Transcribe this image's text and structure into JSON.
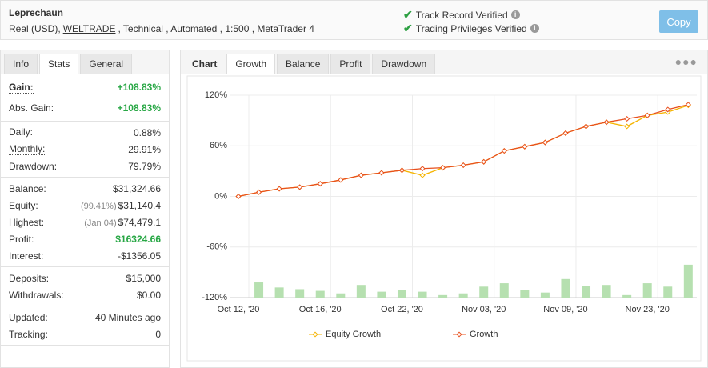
{
  "header": {
    "title": "Leprechaun",
    "account": "Real (USD),",
    "broker": "WELTRADE",
    "details": ", Technical , Automated , 1:500 , MetaTrader 4",
    "verified": [
      "Track Record Verified",
      "Trading Privileges Verified"
    ],
    "button": "Copy"
  },
  "left_tabs": {
    "items": [
      "Info",
      "Stats",
      "General"
    ],
    "active": 1
  },
  "stats": [
    [
      {
        "label": "Gain:",
        "value": "+108.83%",
        "green": true,
        "hint": true,
        "bold": true
      },
      {
        "label": "Abs. Gain:",
        "value": "+108.83%",
        "green": true,
        "hint": true
      }
    ],
    [
      {
        "label": "Daily:",
        "value": "0.88%",
        "hint": true
      },
      {
        "label": "Monthly:",
        "value": "29.91%",
        "hint": true
      },
      {
        "label": "Drawdown:",
        "value": "79.79%"
      }
    ],
    [
      {
        "label": "Balance:",
        "value": "$31,324.66"
      },
      {
        "label": "Equity:",
        "note": "(99.41%)",
        "value": "$31,140.4"
      },
      {
        "label": "Highest:",
        "note": "(Jan 04)",
        "value": "$74,479.1"
      },
      {
        "label": "Profit:",
        "value": "$16324.66",
        "green": true
      },
      {
        "label": "Interest:",
        "value": "-$1356.05"
      }
    ],
    [
      {
        "label": "Deposits:",
        "value": "$15,000"
      },
      {
        "label": "Withdrawals:",
        "value": "$0.00"
      }
    ],
    [
      {
        "label": "Updated:",
        "value": "40 Minutes ago"
      },
      {
        "label": "Tracking:",
        "value": "0"
      }
    ]
  ],
  "right_tabs": {
    "items": [
      "Chart",
      "Growth",
      "Balance",
      "Profit",
      "Drawdown"
    ],
    "active": 1
  },
  "chart_data": {
    "type": "line",
    "categories": [
      "Oct 12, '20",
      null,
      null,
      null,
      "Oct 16, '20",
      null,
      null,
      null,
      "Oct 22, '20",
      null,
      null,
      null,
      "Nov 03, '20",
      null,
      null,
      null,
      "Nov 09, '20",
      null,
      null,
      null,
      "Nov 23, '20",
      null,
      null
    ],
    "ylim": [
      -120,
      120
    ],
    "yticks": [
      {
        "value": 120,
        "label": "120%"
      },
      {
        "value": 60,
        "label": "60%"
      },
      {
        "value": 0,
        "label": "0%"
      },
      {
        "value": -60,
        "label": "-60%"
      },
      {
        "value": -120,
        "label": "-120%"
      }
    ],
    "grid": true,
    "series": [
      {
        "name": "Equity Growth",
        "color": "#f5b400",
        "values": [
          0,
          5,
          9,
          11,
          15,
          19.5,
          25,
          28,
          31,
          25,
          34,
          37,
          41,
          54,
          59,
          64,
          75,
          83,
          88,
          83,
          96,
          100,
          108
        ]
      },
      {
        "name": "Growth",
        "color": "#e8501e",
        "values": [
          0,
          5,
          9,
          11,
          15,
          19.5,
          25,
          28,
          31,
          33,
          34,
          37,
          41,
          54,
          59,
          64,
          75,
          83,
          88,
          92,
          96,
          103,
          108.83
        ]
      }
    ],
    "bars": {
      "color": "#b6e0b0",
      "values": [
        null,
        -102,
        -108,
        -110,
        -112,
        -115,
        -105,
        -113,
        -111,
        -113,
        -117,
        -115,
        -107,
        -103,
        -111,
        -114,
        -98,
        -106,
        -105,
        -117,
        -103,
        -107,
        -81
      ]
    }
  }
}
